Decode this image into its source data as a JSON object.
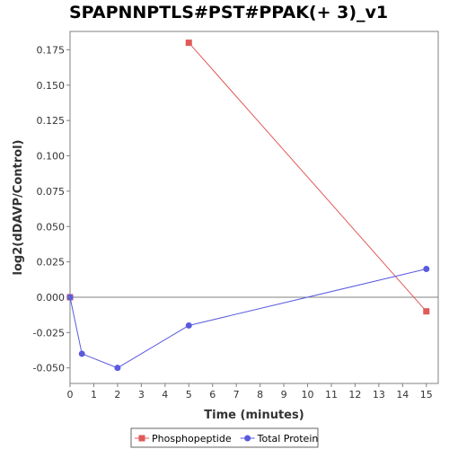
{
  "chart_data": {
    "type": "line",
    "title": "SPAPNNPTLS#PST#PPAK(+ 3)_v1",
    "xlabel": "Time (minutes)",
    "ylabel": "log2(dDAVP/Control)",
    "xlim": [
      0,
      15.5
    ],
    "ylim": [
      -0.061,
      0.188
    ],
    "xticks": [
      0,
      1,
      2,
      3,
      4,
      5,
      6,
      7,
      8,
      9,
      10,
      11,
      12,
      13,
      14,
      15
    ],
    "yticks": [
      -0.05,
      -0.025,
      0,
      0.025,
      0.05,
      0.075,
      0.1,
      0.125,
      0.15,
      0.175
    ],
    "ytick_labels": [
      "-0.050",
      "-0.025",
      "0.000",
      "0.025",
      "0.050",
      "0.075",
      "0.100",
      "0.125",
      "0.150",
      "0.175"
    ],
    "zero_line": true,
    "grid": false,
    "legend_position": "bottom",
    "series": [
      {
        "name": "Phosphopeptide",
        "color": "#e05a5a",
        "marker": "square",
        "x": [
          0,
          5,
          15
        ],
        "y": [
          0.0,
          0.18,
          -0.01
        ],
        "segments": [
          [
            1,
            2
          ]
        ]
      },
      {
        "name": "Total Protein",
        "color": "#5a5ae0",
        "marker": "circle",
        "x": [
          0,
          0.5,
          2,
          5,
          15
        ],
        "y": [
          0.0,
          -0.04,
          -0.05,
          -0.02,
          0.02
        ],
        "segments": [
          [
            0,
            1
          ],
          [
            1,
            2
          ],
          [
            2,
            3
          ],
          [
            3,
            4
          ]
        ]
      }
    ]
  }
}
